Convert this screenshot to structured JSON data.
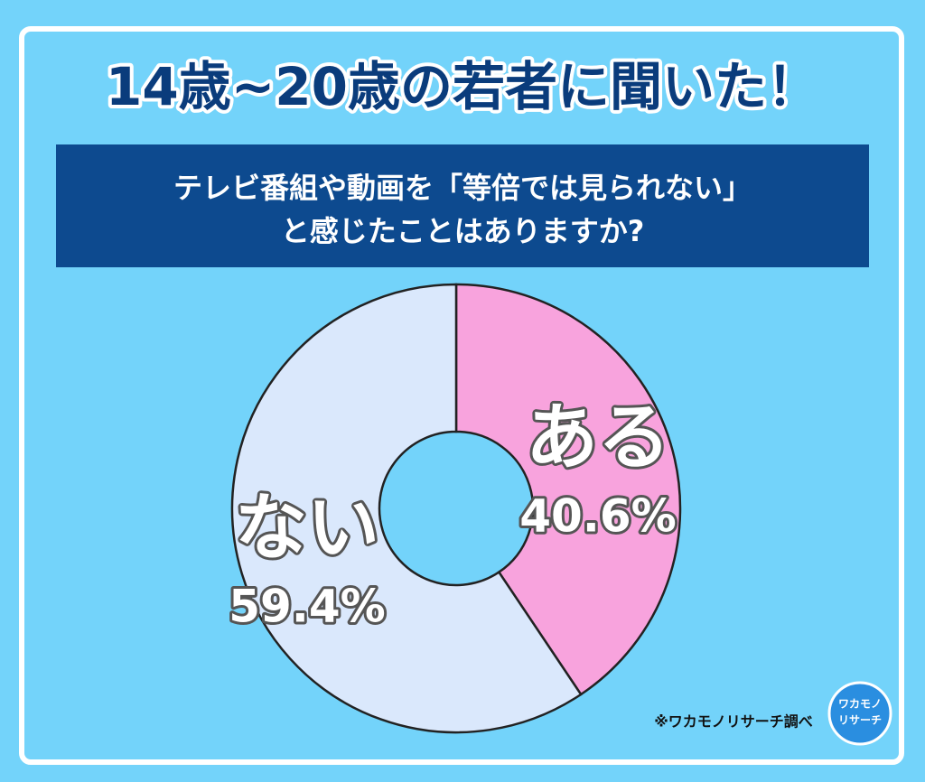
{
  "chart_data": {
    "type": "donut",
    "title": "14歳~20歳の若者に聞いた！",
    "subtitle": [
      "テレビ番組や動画を「等倍では見られない」",
      "と感じたことはありますか?"
    ],
    "categories": [
      "ある",
      "ない"
    ],
    "values": [
      40.6,
      59.4
    ],
    "value_labels": [
      "40.6%",
      "59.4%"
    ],
    "colors": [
      "#f8a3dd",
      "#dae8fc"
    ],
    "source": "※ワカモノリサーチ調べ",
    "logo": [
      "ワカモノ",
      "リサーチ"
    ]
  }
}
